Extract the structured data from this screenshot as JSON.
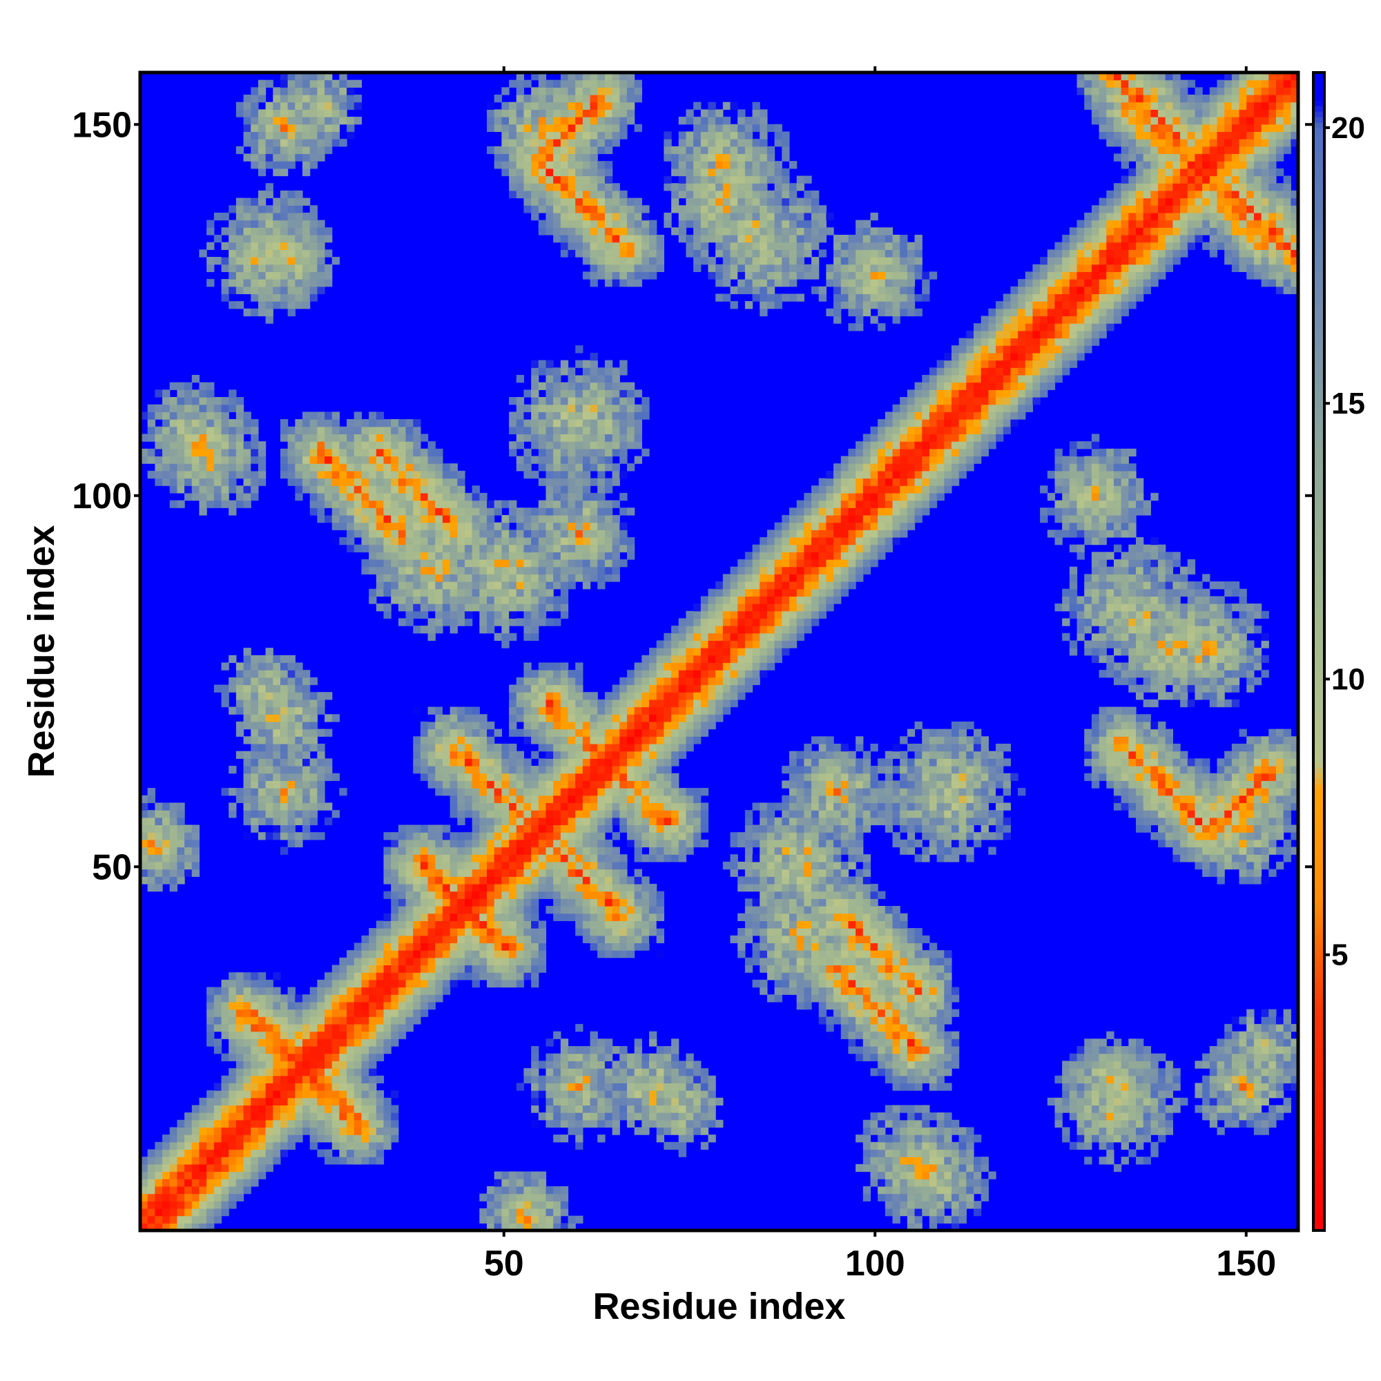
{
  "chart_data": {
    "type": "heatmap",
    "title": "",
    "xlabel": "Residue index",
    "ylabel": "Residue index",
    "n_residues": 157,
    "xlim": [
      1,
      157
    ],
    "ylim": [
      1,
      157
    ],
    "x_ticks": [
      50,
      100,
      150
    ],
    "y_ticks": [
      50,
      100,
      150
    ],
    "x_tick_labels": [
      "50",
      "100",
      "150"
    ],
    "y_tick_labels": [
      "50",
      "100",
      "150"
    ],
    "colorbar": {
      "range": [
        0,
        21
      ],
      "ticks": [
        5,
        10,
        15,
        20
      ],
      "tick_labels": [
        "5",
        "10",
        "15",
        "20"
      ],
      "stops": [
        {
          "value": 0,
          "color": "#ff0000"
        },
        {
          "value": 4,
          "color": "#ff3300"
        },
        {
          "value": 6,
          "color": "#ff8c00"
        },
        {
          "value": 8,
          "color": "#ffa500"
        },
        {
          "value": 8.5,
          "color": "#b8c48a"
        },
        {
          "value": 11,
          "color": "#a3b88f"
        },
        {
          "value": 14,
          "color": "#8ea69a"
        },
        {
          "value": 17,
          "color": "#7089b0"
        },
        {
          "value": 20,
          "color": "#4f6fc0"
        },
        {
          "value": 20.5,
          "color": "#0000f5"
        },
        {
          "value": 21,
          "color": "#0000ff"
        }
      ]
    },
    "background_color": "#0000ff",
    "diagonal_color": "#ff0000",
    "contact_features": [
      {
        "kind": "antiparallel",
        "i_start": 15,
        "j_start": 30,
        "length": 14,
        "strength": 0.55
      },
      {
        "kind": "antiparallel",
        "i_start": 39,
        "j_start": 50,
        "length": 12,
        "strength": 0.6
      },
      {
        "kind": "antiparallel",
        "i_start": 43,
        "j_start": 66,
        "length": 12,
        "strength": 0.6
      },
      {
        "kind": "antiparallel",
        "i_start": 56,
        "j_start": 72,
        "length": 10,
        "strength": 0.55
      },
      {
        "kind": "antiparallel",
        "i_start": 95,
        "j_start": 36,
        "length": 12,
        "strength": 0.6
      },
      {
        "kind": "antiparallel",
        "i_start": 134,
        "j_start": 66,
        "length": 11,
        "strength": 0.6
      },
      {
        "kind": "parallel",
        "i_start": 55,
        "j_start": 146,
        "length": 9,
        "strength": 0.6
      },
      {
        "kind": "antiparallel",
        "i_start": 96,
        "j_start": 43,
        "length": 11,
        "strength": 0.55
      },
      {
        "kind": "antiparallel",
        "i_start": 133,
        "j_start": 157,
        "length": 10,
        "strength": 0.6
      },
      {
        "kind": "antiparallel",
        "i_start": 142,
        "j_start": 146,
        "length": 12,
        "strength": 0.6
      }
    ],
    "contact_blobs": [
      {
        "i": 20,
        "j": 150,
        "r": 7,
        "strength": 0.45
      },
      {
        "i": 55,
        "j": 150,
        "r": 8,
        "strength": 0.45
      },
      {
        "i": 80,
        "j": 140,
        "r": 9,
        "strength": 0.4
      },
      {
        "i": 100,
        "j": 130,
        "r": 6,
        "strength": 0.45
      },
      {
        "i": 18,
        "j": 133,
        "r": 9,
        "strength": 0.4
      },
      {
        "i": 8,
        "j": 108,
        "r": 8,
        "strength": 0.45
      },
      {
        "i": 40,
        "j": 90,
        "r": 9,
        "strength": 0.4
      },
      {
        "i": 60,
        "j": 95,
        "r": 8,
        "strength": 0.4
      },
      {
        "i": 17,
        "j": 74,
        "r": 6,
        "strength": 0.45
      },
      {
        "i": 3,
        "j": 52,
        "r": 6,
        "strength": 0.45
      },
      {
        "i": 60,
        "j": 20,
        "r": 8,
        "strength": 0.4
      },
      {
        "i": 70,
        "j": 20,
        "r": 7,
        "strength": 0.45
      },
      {
        "i": 105,
        "j": 10,
        "r": 8,
        "strength": 0.45
      },
      {
        "i": 110,
        "j": 60,
        "r": 10,
        "strength": 0.4
      },
      {
        "i": 90,
        "j": 50,
        "r": 10,
        "strength": 0.4
      },
      {
        "i": 130,
        "j": 100,
        "r": 8,
        "strength": 0.45
      },
      {
        "i": 135,
        "j": 85,
        "r": 10,
        "strength": 0.4
      },
      {
        "i": 145,
        "j": 80,
        "r": 9,
        "strength": 0.4
      },
      {
        "i": 132,
        "j": 20,
        "r": 7,
        "strength": 0.45
      },
      {
        "i": 153,
        "j": 25,
        "r": 6,
        "strength": 0.45
      },
      {
        "i": 53,
        "j": 2,
        "r": 7,
        "strength": 0.4
      },
      {
        "i": 55,
        "j": 58,
        "r": 6,
        "strength": 0.35
      }
    ]
  }
}
